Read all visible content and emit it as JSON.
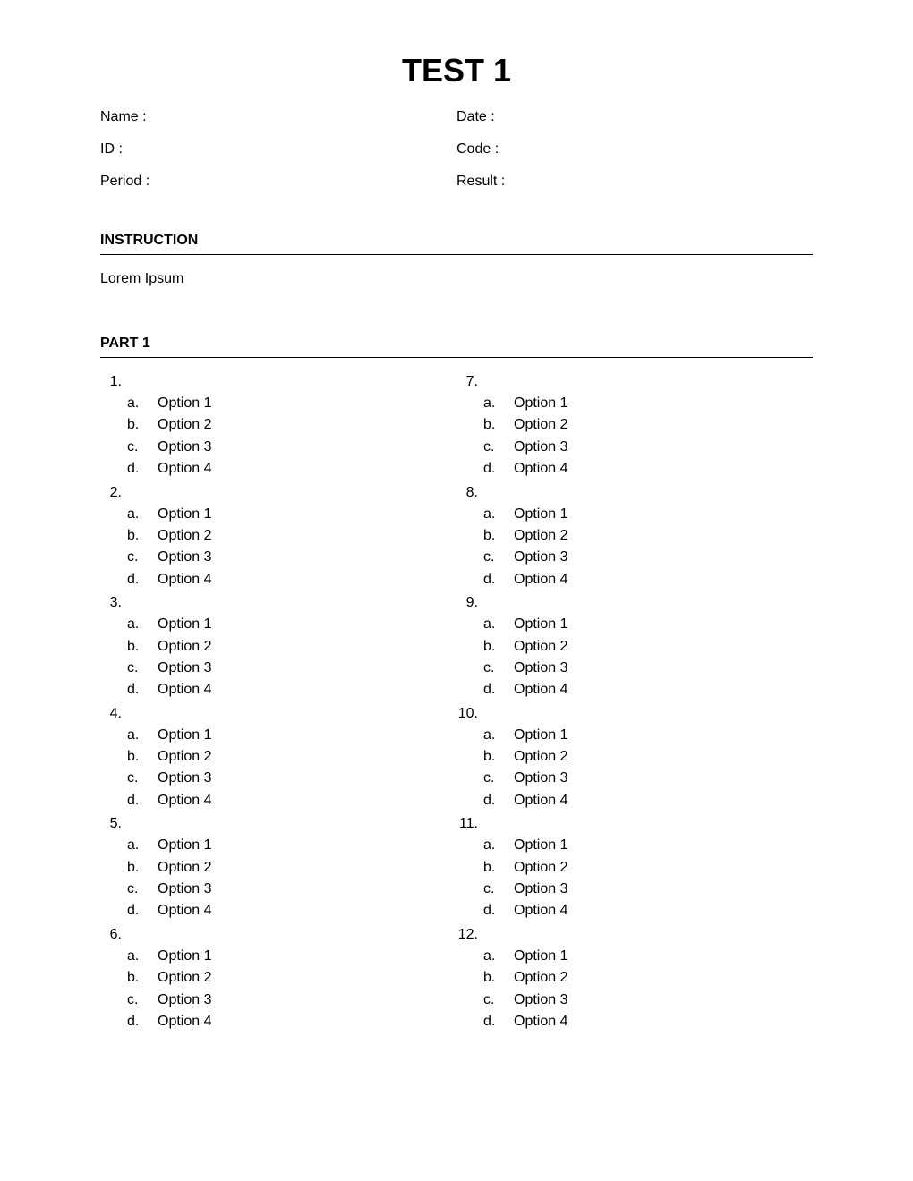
{
  "title": "TEST 1",
  "header": {
    "name_label": "Name :",
    "date_label": "Date :",
    "id_label": "ID :",
    "code_label": "Code :",
    "period_label": "Period :",
    "result_label": "Result :"
  },
  "instruction": {
    "heading": "INSTRUCTION",
    "body": "Lorem Ipsum"
  },
  "part1": {
    "heading": "PART 1",
    "option_letters": [
      "a.",
      "b.",
      "c.",
      "d."
    ],
    "option_texts": [
      "Option 1",
      "Option 2",
      "Option 3",
      "Option 4"
    ],
    "left_questions": [
      "1.",
      "2.",
      "3.",
      "4.",
      "5.",
      "6."
    ],
    "right_questions": [
      "7.",
      "8.",
      "9.",
      "10.",
      "11.",
      "12."
    ]
  },
  "styling": {
    "background_color": "#ffffff",
    "text_color": "#000000",
    "title_fontsize": 36,
    "body_fontsize": 16,
    "section_border_color": "#000000"
  }
}
